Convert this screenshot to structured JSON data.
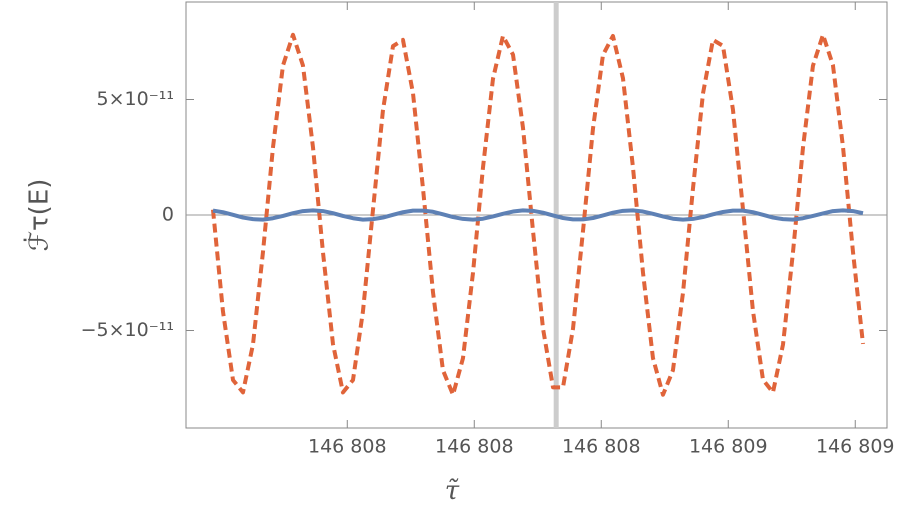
{
  "chart_data": {
    "type": "line",
    "xlabel": "τ̃",
    "ylabel": "ℱ̇τ(E)",
    "xlim": [
      146807.746,
      146808.85
    ],
    "ylim": [
      -9.22e-11,
      9.22e-11
    ],
    "xticks": [
      {
        "value": 146808.0,
        "label": "146 808"
      },
      {
        "value": 146808.2,
        "label": "146 808"
      },
      {
        "value": 146808.4,
        "label": "146 808"
      },
      {
        "value": 146808.6,
        "label": "146 809"
      },
      {
        "value": 146808.8,
        "label": "146 809"
      }
    ],
    "yticks": [
      {
        "value": 5e-11,
        "label": "5×10⁻¹¹"
      },
      0,
      {
        "value": -5e-11,
        "label": "−5×10⁻¹¹"
      }
    ],
    "vertical_line": 146808.329,
    "x": [
      146807.7885,
      146807.8042,
      146807.82,
      146807.8357,
      146807.8515,
      146807.8672,
      146807.883,
      146807.8987,
      146807.9145,
      146807.9302,
      146807.946,
      146807.9617,
      146807.9775,
      146807.9932,
      146808.009,
      146808.0247,
      146808.0405,
      146808.0562,
      146808.072,
      146808.0877,
      146808.1035,
      146808.1192,
      146808.135,
      146808.1507,
      146808.1665,
      146808.1822,
      146808.198,
      146808.2137,
      146808.2295,
      146808.2452,
      146808.261,
      146808.2767,
      146808.2925,
      146808.3082,
      146808.324,
      146808.3397,
      146808.3555,
      146808.3712,
      146808.387,
      146808.4027,
      146808.4184,
      146808.4342,
      146808.4499,
      146808.4657,
      146808.4814,
      146808.4972,
      146808.5129,
      146808.5287,
      146808.5444,
      146808.5602,
      146808.5759,
      146808.5917,
      146808.6074,
      146808.6232,
      146808.6389,
      146808.6547,
      146808.6704,
      146808.6862,
      146808.7019,
      146808.7177,
      146808.7334,
      146808.7492,
      146808.7649,
      146808.7807,
      146808.7964,
      146808.8122
    ],
    "series": [
      {
        "color": "#e0643a",
        "dashed": true,
        "values": [
          2.3e-12,
          -4.17e-11,
          -7.14e-11,
          -7.68e-11,
          -5.6e-11,
          -1.61e-11,
          2.93e-11,
          6.47e-11,
          7.8e-11,
          6.47e-11,
          2.93e-11,
          -1.61e-11,
          -5.59e-11,
          -7.68e-11,
          -7.14e-11,
          -4.17e-11,
          2.3e-12,
          4.54e-11,
          7.31e-11,
          7.58e-11,
          5.27e-11,
          1.16e-11,
          -3.35e-11,
          -6.72e-11,
          -7.78e-11,
          -6.2e-11,
          -2.5e-11,
          2.05e-11,
          5.9e-11,
          7.75e-11,
          6.94e-11,
          3.78e-11,
          -6.9e-12,
          -4.91e-11,
          -7.46e-11,
          -7.46e-11,
          -4.92e-11,
          -7e-12,
          3.75e-11,
          6.93e-11,
          7.75e-11,
          5.92e-11,
          2.07e-11,
          -2.49e-11,
          -6.19e-11,
          -7.78e-11,
          -6.72e-11,
          -3.37e-11,
          1.14e-11,
          5.26e-11,
          7.58e-11,
          7.32e-11,
          4.56e-11,
          2.5e-12,
          -4.15e-11,
          -7.13e-11,
          -7.68e-11,
          -5.61e-11,
          -1.62e-11,
          2.92e-11,
          6.46e-11,
          7.8e-11,
          6.48e-11,
          2.95e-11,
          -1.59e-11,
          -5.58e-11
        ]
      },
      {
        "color": "#5e81b5",
        "dashed": false,
        "values": [
          1.9e-12,
          1.2e-12,
          1e-13,
          -1.1e-12,
          -1.8e-12,
          -2e-12,
          -1.4e-12,
          -4e-13,
          8e-13,
          1.7e-12,
          2e-12,
          1.7e-12,
          8e-13,
          -4e-13,
          -1.4e-12,
          -2e-12,
          -1.8e-12,
          -1.1e-12,
          1e-13,
          1.2e-12,
          1.9e-12,
          1.9e-12,
          1.4e-12,
          3e-13,
          -9e-13,
          -1.7e-12,
          -2e-12,
          -1.6e-12,
          -6e-13,
          5e-13,
          1.5e-12,
          2e-12,
          1.8e-12,
          1e-12,
          -2e-13,
          -1.3e-12,
          -1.9e-12,
          -1.9e-12,
          -1.3e-12,
          -2e-13,
          1e-12,
          1.8e-12,
          2e-12,
          1.5e-12,
          5e-13,
          -6e-13,
          -1.6e-12,
          -2e-12,
          -1.7e-12,
          -9e-13,
          3e-13,
          1.3e-12,
          1.9e-12,
          1.9e-12,
          1.2e-12,
          1e-13,
          -1.1e-12,
          -1.8e-12,
          -2e-12,
          -1.4e-12,
          -4e-13,
          7e-13,
          1.7e-12,
          2e-12,
          1.7e-12,
          8e-13
        ]
      }
    ]
  }
}
